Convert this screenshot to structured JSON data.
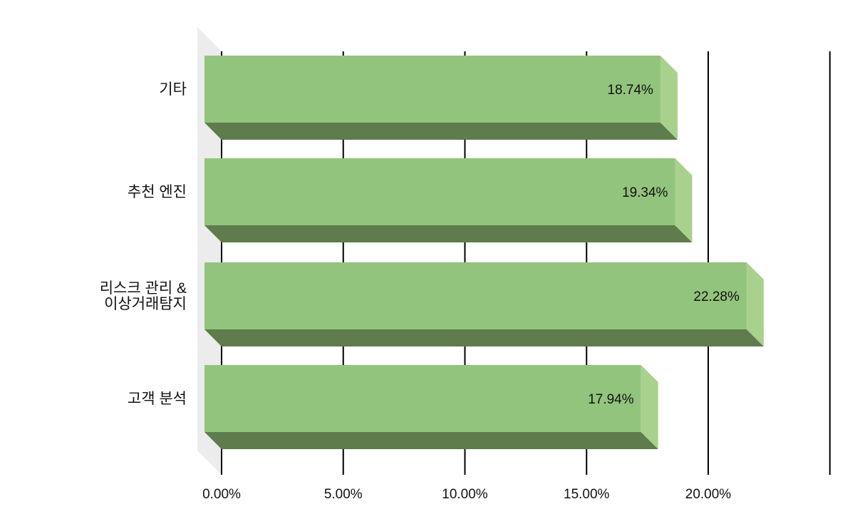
{
  "chart_data": {
    "type": "bar",
    "orientation": "horizontal",
    "style": "3d",
    "categories": [
      "기타",
      "추천 엔진",
      "리스크 관리 &\n이상거래탐지",
      "고객 분석"
    ],
    "values": [
      18.74,
      19.34,
      22.28,
      17.94
    ],
    "data_labels": [
      "18.74%",
      "19.34%",
      "22.28%",
      "17.94%"
    ],
    "x_ticks": [
      "0.00%",
      "5.00%",
      "10.00%",
      "15.00%",
      "20.00%"
    ],
    "xlim": [
      0,
      25
    ],
    "grid": true,
    "legend": "none",
    "colors": {
      "bar_front": "#93c47d",
      "bar_side": "#a9d18e",
      "bar_bottom": "#5e7c4c",
      "floor": "#ececec",
      "grid": "#000000"
    }
  }
}
